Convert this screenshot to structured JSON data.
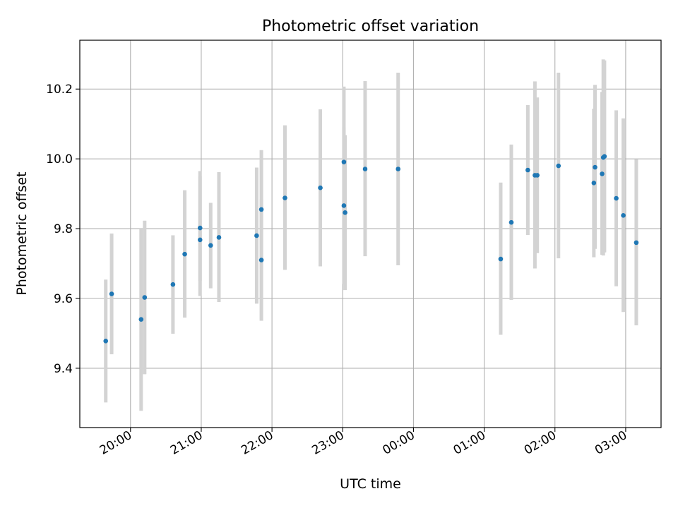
{
  "chart_data": {
    "type": "scatter",
    "title": "Photometric offset variation",
    "xlabel": "UTC time",
    "ylabel": "Photometric offset",
    "x_tick_labels": [
      "20:00",
      "21:00",
      "22:00",
      "23:00",
      "00:00",
      "01:00",
      "02:00",
      "03:00"
    ],
    "y_ticks": [
      9.4,
      9.6,
      9.8,
      10.0,
      10.2
    ],
    "y_tick_labels": [
      "9.4",
      "9.6",
      "9.8",
      "10.0",
      "10.2"
    ],
    "xlim": [
      "19:17",
      "03:30"
    ],
    "ylim": [
      9.23,
      10.34
    ],
    "grid": true,
    "marker_color": "#1f77b4",
    "errorbar_color": "#d3d3d3",
    "series": [
      {
        "points": [
          {
            "x": "19:39",
            "y": 9.478,
            "lo": 9.302,
            "hi": 9.654
          },
          {
            "x": "19:44",
            "y": 9.613,
            "lo": 9.44,
            "hi": 9.786
          },
          {
            "x": "20:09",
            "y": 9.54,
            "lo": 9.278,
            "hi": 9.802
          },
          {
            "x": "20:12",
            "y": 9.603,
            "lo": 9.383,
            "hi": 9.823
          },
          {
            "x": "20:36",
            "y": 9.64,
            "lo": 9.499,
            "hi": 9.781
          },
          {
            "x": "20:46",
            "y": 9.727,
            "lo": 9.545,
            "hi": 9.91
          },
          {
            "x": "20:59",
            "y": 9.768,
            "lo": 9.607,
            "hi": 9.965
          },
          {
            "x": "20:59",
            "y": 9.802,
            "lo": 9.65,
            "hi": 9.95
          },
          {
            "x": "21:08",
            "y": 9.752,
            "lo": 9.629,
            "hi": 9.874
          },
          {
            "x": "21:15",
            "y": 9.775,
            "lo": 9.59,
            "hi": 9.962
          },
          {
            "x": "21:47",
            "y": 9.78,
            "lo": 9.585,
            "hi": 9.975
          },
          {
            "x": "21:51",
            "y": 9.855,
            "lo": 9.685,
            "hi": 10.025
          },
          {
            "x": "21:51",
            "y": 9.71,
            "lo": 9.536,
            "hi": 9.885
          },
          {
            "x": "22:11",
            "y": 9.888,
            "lo": 9.682,
            "hi": 10.096
          },
          {
            "x": "22:41",
            "y": 9.917,
            "lo": 9.692,
            "hi": 10.142
          },
          {
            "x": "23:01",
            "y": 9.866,
            "lo": 9.641,
            "hi": 10.091
          },
          {
            "x": "23:01",
            "y": 9.991,
            "lo": 9.773,
            "hi": 10.207
          },
          {
            "x": "23:02",
            "y": 9.846,
            "lo": 9.624,
            "hi": 10.068
          },
          {
            "x": "23:19",
            "y": 9.971,
            "lo": 9.721,
            "hi": 10.223
          },
          {
            "x": "23:47",
            "y": 9.971,
            "lo": 9.695,
            "hi": 10.247
          },
          {
            "x": "01:14",
            "y": 9.713,
            "lo": 9.496,
            "hi": 9.932
          },
          {
            "x": "01:23",
            "y": 9.818,
            "lo": 9.596,
            "hi": 10.041
          },
          {
            "x": "01:37",
            "y": 9.968,
            "lo": 9.782,
            "hi": 10.154
          },
          {
            "x": "01:43",
            "y": 9.953,
            "lo": 9.686,
            "hi": 10.222
          },
          {
            "x": "01:45",
            "y": 9.953,
            "lo": 9.73,
            "hi": 10.176
          },
          {
            "x": "02:03",
            "y": 9.98,
            "lo": 9.715,
            "hi": 10.247
          },
          {
            "x": "02:33",
            "y": 9.931,
            "lo": 9.718,
            "hi": 10.144
          },
          {
            "x": "02:34",
            "y": 9.976,
            "lo": 9.742,
            "hi": 10.212
          },
          {
            "x": "02:40",
            "y": 9.957,
            "lo": 9.725,
            "hi": 10.192
          },
          {
            "x": "02:41",
            "y": 10.004,
            "lo": 9.723,
            "hi": 10.285
          },
          {
            "x": "02:42",
            "y": 10.007,
            "lo": 9.732,
            "hi": 10.282
          },
          {
            "x": "02:52",
            "y": 9.887,
            "lo": 9.635,
            "hi": 10.139
          },
          {
            "x": "02:58",
            "y": 9.838,
            "lo": 9.561,
            "hi": 10.116
          },
          {
            "x": "03:09",
            "y": 9.76,
            "lo": 9.523,
            "hi": 9.999
          }
        ]
      }
    ]
  }
}
